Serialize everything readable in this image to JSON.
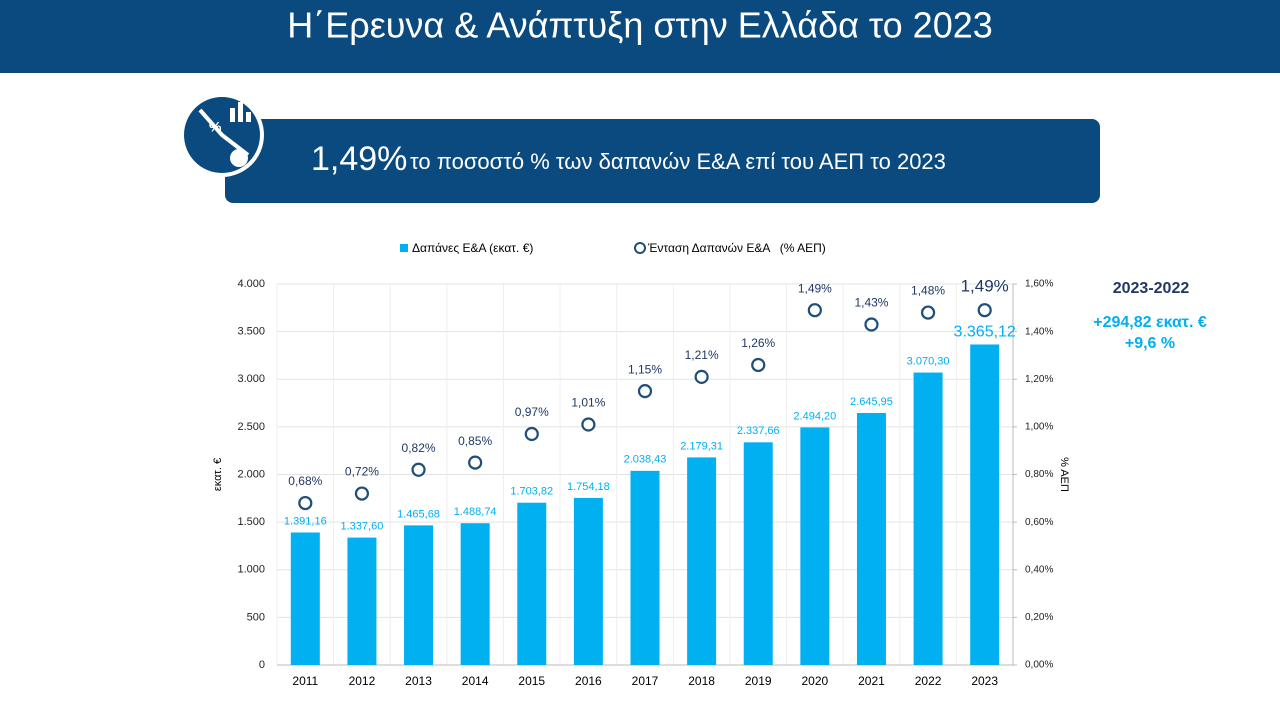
{
  "header": {
    "title": "Η΄Ερευνα & Ανάπτυξη στην Ελλάδα το 2023"
  },
  "banner": {
    "highlight": "1,49%",
    "text": "το ποσοστό % των δαπανών Ε&Α επί του ΑΕΠ το 2023"
  },
  "side_note": {
    "title": "2023-2022",
    "lines": [
      "+294,82 εκατ. €",
      "+9,6 %"
    ]
  },
  "chart_data": {
    "type": "bar",
    "categories": [
      "2011",
      "2012",
      "2013",
      "2014",
      "2015",
      "2016",
      "2017",
      "2018",
      "2019",
      "2020",
      "2021",
      "2022",
      "2023"
    ],
    "series": [
      {
        "name": "Δαπάνες Ε&Α (εκατ. €)",
        "color": "#00b0f0",
        "type": "bar",
        "values": [
          1391.16,
          1337.6,
          1465.68,
          1488.74,
          1703.82,
          1754.18,
          2038.43,
          2179.31,
          2337.66,
          2494.2,
          2645.95,
          3070.3,
          3365.12
        ],
        "value_labels": [
          "1.391,16",
          "1.337,60",
          "1.465,68",
          "1.488,74",
          "1.703,82",
          "1.754,18",
          "2.038,43",
          "2.179,31",
          "2.337,66",
          "2.494,20",
          "2.645,95",
          "3.070,30",
          "3.365,12"
        ]
      },
      {
        "name": "Ένταση Δαπανών Ε&Α   (% ΑΕΠ)",
        "color": "#1f4e79",
        "type": "scatter",
        "axis": "y2",
        "values": [
          0.68,
          0.72,
          0.82,
          0.85,
          0.97,
          1.01,
          1.15,
          1.21,
          1.26,
          1.49,
          1.43,
          1.48,
          1.49
        ],
        "value_labels": [
          "0,68%",
          "0,72%",
          "0,82%",
          "0,85%",
          "0,97%",
          "1,01%",
          "1,15%",
          "1,21%",
          "1,26%",
          "1,49%",
          "1,43%",
          "1,48%",
          "1,49%"
        ]
      }
    ],
    "y_label": "εκατ. €",
    "y2_label": "% ΑΕΠ",
    "ylim": [
      0,
      4000
    ],
    "yticks": [
      0,
      500,
      {
        "value": 1000,
        "label": "1.000"
      },
      {
        "value": 1500,
        "label": "1.500"
      },
      {
        "value": 2000,
        "label": "2.000"
      },
      {
        "value": 2500,
        "label": "2.500"
      },
      {
        "value": 3000,
        "label": "3.000"
      },
      {
        "value": 3500,
        "label": "3.500"
      },
      {
        "value": 4000,
        "label": "4.000"
      }
    ],
    "y2lim": [
      0,
      1.6
    ],
    "y2ticks": [
      {
        "value": 0,
        "label": "0,00%"
      },
      {
        "value": 0.2,
        "label": "0,20%"
      },
      {
        "value": 0.4,
        "label": "0,40%"
      },
      {
        "value": 0.6,
        "label": "0,60%"
      },
      {
        "value": 0.8,
        "label": "0,80%"
      },
      {
        "value": 1.0,
        "label": "1,00%"
      },
      {
        "value": 1.2,
        "label": "1,20%"
      },
      {
        "value": 1.4,
        "label": "1,40%"
      },
      {
        "value": 1.6,
        "label": "1,60%"
      }
    ],
    "grid": true,
    "legend": "top"
  }
}
